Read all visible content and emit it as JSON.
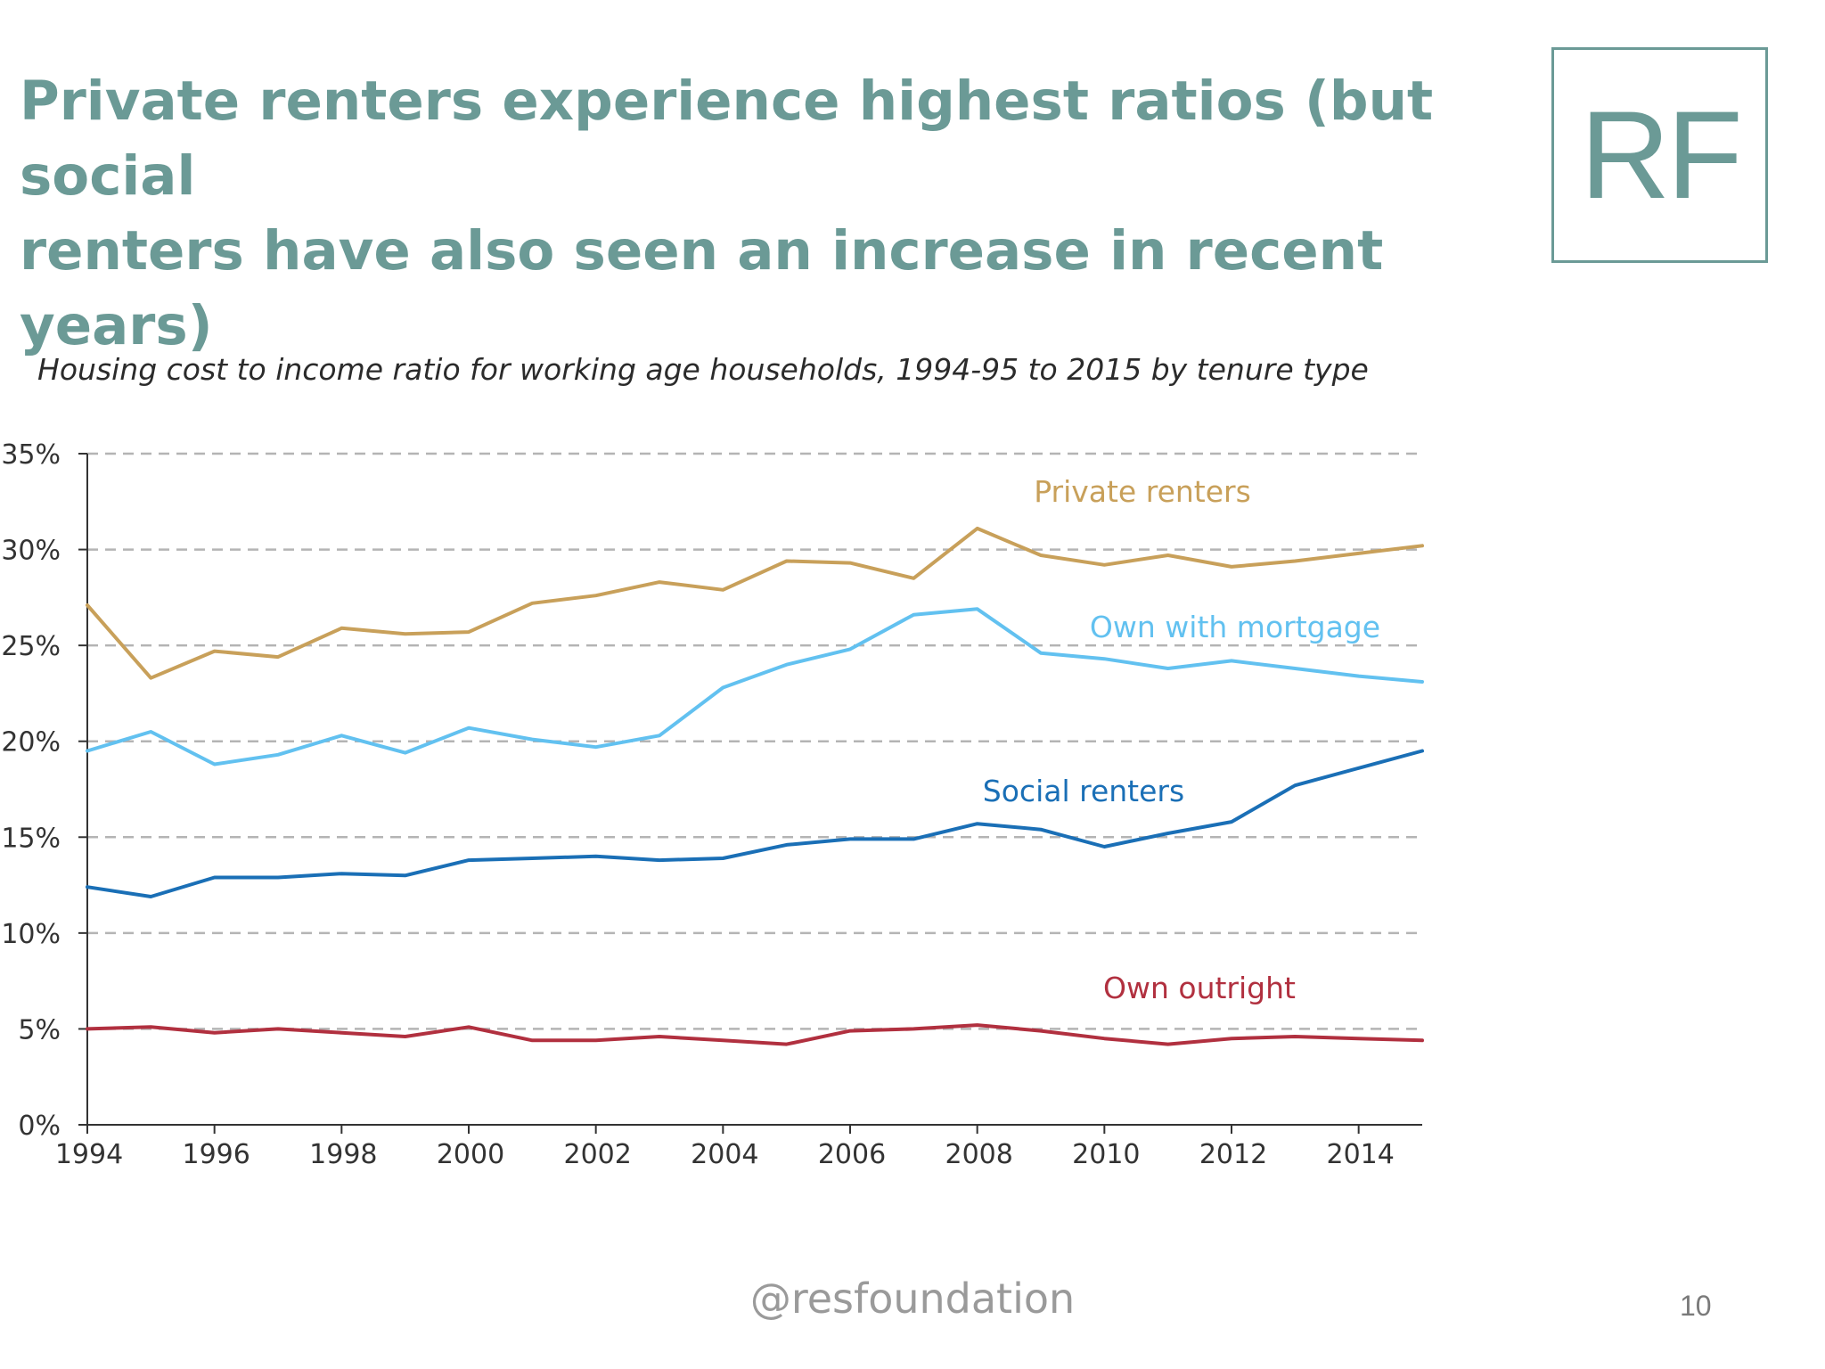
{
  "slide": {
    "title_line1": "Private renters experience highest ratios (but social",
    "title_line2": "renters have also seen an increase in recent years)",
    "logo": "RF",
    "footer": "@resfoundation",
    "page_number": "10"
  },
  "colors": {
    "title": "#6b9a96",
    "private_renters": "#c8a05a",
    "own_with_mortgage": "#62c1f0",
    "social_renters": "#1a6fb6",
    "own_outright": "#b1303f",
    "gridline": "#b4b4b4",
    "axis": "#333333"
  },
  "chart_data": {
    "type": "line",
    "title": "Housing cost to income ratio for working age households, 1994-95 to 2015 by tenure type",
    "xlabel": "",
    "ylabel": "",
    "x": [
      1994,
      1995,
      1996,
      1997,
      1998,
      1999,
      2000,
      2001,
      2002,
      2003,
      2004,
      2005,
      2006,
      2007,
      2008,
      2009,
      2010,
      2011,
      2012,
      2013,
      2014,
      2015
    ],
    "xlim": [
      1994,
      2015
    ],
    "x_ticks": [
      1994,
      1996,
      1998,
      2000,
      2002,
      2004,
      2006,
      2008,
      2010,
      2012,
      2014
    ],
    "x_tick_labels": [
      "1994",
      "1996",
      "1998",
      "2000",
      "2002",
      "2004",
      "2006",
      "2008",
      "2010",
      "2012",
      "2014"
    ],
    "ylim": [
      0,
      35
    ],
    "y_ticks": [
      0,
      5,
      10,
      15,
      20,
      25,
      30,
      35
    ],
    "y_tick_labels": [
      "0%",
      "5%",
      "10%",
      "15%",
      "20%",
      "25%",
      "30%",
      "35%"
    ],
    "grid": "horizontal dashed",
    "legend": "inline labels",
    "series": [
      {
        "name": "Private renters",
        "color": "#c8a05a",
        "values": [
          27.1,
          23.3,
          24.7,
          24.4,
          25.9,
          25.6,
          25.7,
          27.2,
          27.6,
          28.3,
          27.9,
          29.4,
          29.3,
          28.5,
          31.1,
          29.7,
          29.2,
          29.7,
          29.1,
          29.4,
          29.8,
          30.2
        ]
      },
      {
        "name": "Own with mortgage",
        "color": "#62c1f0",
        "values": [
          19.5,
          20.5,
          18.8,
          19.3,
          20.3,
          19.4,
          20.7,
          20.1,
          19.7,
          20.3,
          22.8,
          24.0,
          24.8,
          26.6,
          26.9,
          24.6,
          24.3,
          23.8,
          24.2,
          23.8,
          23.4,
          23.1
        ]
      },
      {
        "name": "Social renters",
        "color": "#1a6fb6",
        "values": [
          12.4,
          11.9,
          12.9,
          12.9,
          13.1,
          13.0,
          13.8,
          13.9,
          14.0,
          13.8,
          13.9,
          14.6,
          14.9,
          14.9,
          15.7,
          15.4,
          14.5,
          15.2,
          15.8,
          17.7,
          18.6,
          19.5
        ]
      },
      {
        "name": "Own outright",
        "color": "#b1303f",
        "values": [
          5.0,
          5.1,
          4.8,
          5.0,
          4.8,
          4.6,
          5.1,
          4.4,
          4.4,
          4.6,
          4.4,
          4.2,
          4.9,
          5.0,
          5.2,
          4.9,
          4.5,
          4.2,
          4.5,
          4.6,
          4.5,
          4.4
        ]
      }
    ]
  }
}
